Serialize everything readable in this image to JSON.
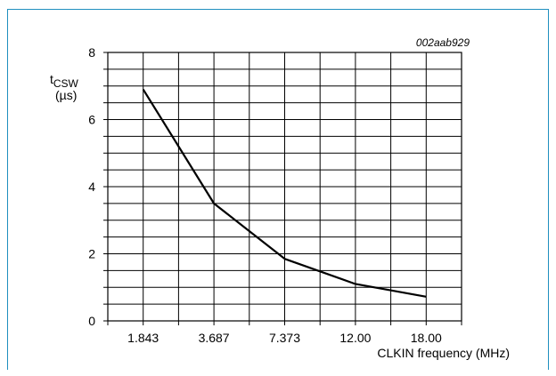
{
  "figure_code": "002aab929",
  "chart_data": {
    "type": "line",
    "title": "",
    "ylabel_main": "t",
    "ylabel_sub": "CSW",
    "ylabel_unit": "(µs)",
    "xlabel": "CLKIN frequency (MHz)",
    "categories": [
      "1.843",
      "3.687",
      "7.373",
      "12.00",
      "18.00"
    ],
    "series": [
      {
        "values": [
          6.9,
          3.5,
          1.85,
          1.1,
          0.72
        ]
      }
    ],
    "yticks": [
      "0",
      "2",
      "4",
      "6",
      "8"
    ],
    "ylim": [
      0,
      8
    ],
    "grid": true
  },
  "colors": {
    "frame": "#1f8fbf",
    "line": "#000000",
    "grid": "#000000"
  }
}
